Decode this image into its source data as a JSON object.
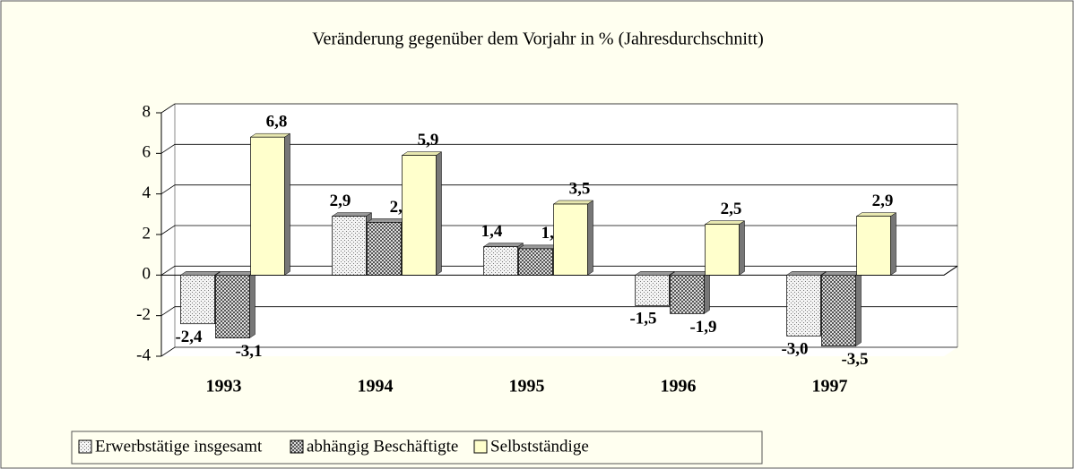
{
  "chart_data": {
    "type": "bar",
    "title": "Veränderung gegenüber dem Vorjahr in % (Jahresdurchschnitt)",
    "categories": [
      "1993",
      "1994",
      "1995",
      "1996",
      "1997"
    ],
    "series": [
      {
        "name": "Erwerbstätige insgesamt",
        "color": "#e8e8e8",
        "values": [
          -2.4,
          2.9,
          1.4,
          -1.5,
          -3.0
        ],
        "value_labels": [
          "-2,4",
          "2,9",
          "1,4",
          "-1,5",
          "-3,0"
        ]
      },
      {
        "name": "abhängig Beschäftigte",
        "color": "#b0b0b0",
        "values": [
          -3.1,
          2.6,
          1.3,
          -1.9,
          -3.5
        ],
        "value_labels": [
          "-3,1",
          "2,6",
          "1,3",
          "-1,9",
          "-3,5"
        ]
      },
      {
        "name": "Selbstständige",
        "color": "#ffffcc",
        "values": [
          6.8,
          5.9,
          3.5,
          2.5,
          2.9
        ],
        "value_labels": [
          "6,8",
          "5,9",
          "3,5",
          "2,5",
          "2,9"
        ]
      }
    ],
    "ylim": [
      -4,
      8
    ],
    "yticks": [
      -4,
      -2,
      0,
      2,
      4,
      6,
      8
    ],
    "grid": true
  }
}
